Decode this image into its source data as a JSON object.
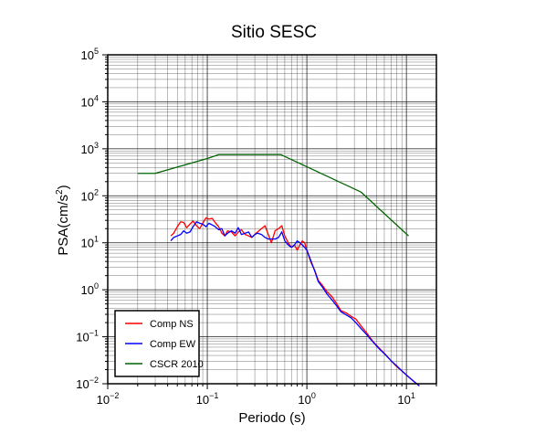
{
  "chart_data": {
    "type": "line",
    "title": "Sitio SESC",
    "xlabel": "Periodo (s)",
    "ylabel": "PSA(cm/s2)",
    "ylabel_parts": {
      "main": "PSA(cm/s",
      "sup": "2",
      "close": ")"
    },
    "xscale": "log",
    "yscale": "log",
    "xlim": [
      0.01,
      20
    ],
    "ylim": [
      0.01,
      100000
    ],
    "xticks": [
      {
        "value": 0.01,
        "base": "10",
        "exp": "−2"
      },
      {
        "value": 0.1,
        "base": "10",
        "exp": "−1"
      },
      {
        "value": 1,
        "base": "10",
        "exp": "0"
      },
      {
        "value": 10,
        "base": "10",
        "exp": "1"
      }
    ],
    "yticks": [
      {
        "value": 0.01,
        "base": "10",
        "exp": "−2"
      },
      {
        "value": 0.1,
        "base": "10",
        "exp": "−1"
      },
      {
        "value": 1,
        "base": "10",
        "exp": "0"
      },
      {
        "value": 10,
        "base": "10",
        "exp": "1"
      },
      {
        "value": 100,
        "base": "10",
        "exp": "2"
      },
      {
        "value": 1000,
        "base": "10",
        "exp": "3"
      },
      {
        "value": 10000,
        "base": "10",
        "exp": "4"
      },
      {
        "value": 100000,
        "base": "10",
        "exp": "5"
      }
    ],
    "grid": true,
    "legend_position": "bottom-left",
    "series": [
      {
        "name": "Comp NS",
        "color": "#ff0000",
        "x": [
          0.043,
          0.046,
          0.05,
          0.054,
          0.058,
          0.062,
          0.067,
          0.072,
          0.078,
          0.084,
          0.09,
          0.097,
          0.104,
          0.112,
          0.12,
          0.13,
          0.14,
          0.15,
          0.16,
          0.175,
          0.19,
          0.205,
          0.22,
          0.24,
          0.26,
          0.28,
          0.3,
          0.32,
          0.35,
          0.38,
          0.41,
          0.44,
          0.48,
          0.52,
          0.56,
          0.6,
          0.65,
          0.7,
          0.75,
          0.8,
          0.85,
          0.9,
          0.95,
          1.0,
          1.1,
          1.2,
          1.3,
          1.45,
          1.6,
          1.8,
          2.0,
          2.2,
          2.5,
          2.8,
          3.1,
          3.5,
          4.0,
          4.6,
          5.3,
          6.1,
          7.0,
          8.0,
          9.2,
          10.5,
          12.0,
          13.5
        ],
        "y": [
          14,
          16,
          22,
          28,
          27,
          21,
          25,
          29,
          23,
          20,
          26,
          34,
          32,
          33,
          27,
          22,
          16,
          14,
          18,
          17,
          14,
          17,
          19,
          15,
          14,
          13,
          15,
          17,
          20,
          23,
          15,
          10,
          18,
          20,
          23,
          14,
          10,
          8,
          9,
          7,
          9,
          11,
          10,
          7,
          3.8,
          2.6,
          1.6,
          1.2,
          0.9,
          0.7,
          0.5,
          0.36,
          0.32,
          0.27,
          0.24,
          0.17,
          0.12,
          0.08,
          0.058,
          0.043,
          0.031,
          0.023,
          0.018,
          0.014,
          0.011,
          0.009
        ]
      },
      {
        "name": "Comp EW",
        "color": "#0000ff",
        "x": [
          0.043,
          0.046,
          0.05,
          0.054,
          0.058,
          0.062,
          0.067,
          0.072,
          0.078,
          0.084,
          0.09,
          0.097,
          0.104,
          0.112,
          0.12,
          0.13,
          0.14,
          0.15,
          0.16,
          0.175,
          0.19,
          0.205,
          0.22,
          0.24,
          0.26,
          0.28,
          0.3,
          0.32,
          0.35,
          0.38,
          0.41,
          0.44,
          0.48,
          0.52,
          0.56,
          0.6,
          0.65,
          0.7,
          0.75,
          0.8,
          0.85,
          0.9,
          0.95,
          1.0,
          1.1,
          1.2,
          1.3,
          1.45,
          1.6,
          1.8,
          2.0,
          2.2,
          2.5,
          2.8,
          3.1,
          3.5,
          4.0,
          4.6,
          5.3,
          6.1,
          7.0,
          8.0,
          9.2,
          10.5,
          12.0,
          13.5
        ],
        "y": [
          11,
          13,
          14,
          15,
          18,
          16,
          17,
          22,
          28,
          26,
          25,
          22,
          26,
          24,
          22,
          19,
          20,
          14,
          16,
          18,
          16,
          21,
          15,
          16,
          17,
          13,
          15,
          16,
          15,
          13,
          12,
          12,
          12,
          13,
          17,
          11,
          9,
          8,
          9,
          11,
          10,
          9,
          8,
          7,
          4.1,
          2.5,
          1.5,
          1.1,
          0.8,
          0.6,
          0.45,
          0.34,
          0.29,
          0.25,
          0.2,
          0.15,
          0.11,
          0.078,
          0.056,
          0.042,
          0.031,
          0.024,
          0.018,
          0.014,
          0.011,
          0.009
        ]
      },
      {
        "name": "CSCR 2010",
        "color": "#006400",
        "x": [
          0.02,
          0.03,
          0.1,
          0.13,
          0.55,
          3.5,
          10.5
        ],
        "y": [
          300,
          300,
          620,
          750,
          750,
          120,
          14
        ]
      }
    ]
  }
}
